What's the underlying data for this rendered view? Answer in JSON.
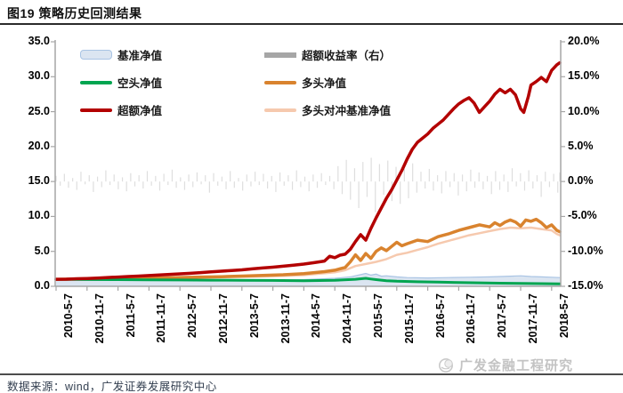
{
  "title": "图19 策略历史回测结果",
  "source_note": "数据来源：wind，广发证券发展研究中心",
  "watermark": "广发金融工程研究",
  "colors": {
    "benchmark_fill": "#dbe5f1",
    "benchmark_border": "#a9c4e4",
    "excess_return_bar": "#dedede",
    "excess_return_legend": "#a6a6a6",
    "short_nav": "#00a550",
    "long_nav": "#d9832e",
    "excess_nav": "#b30000",
    "long_hedge_nav": "#f6c9ae",
    "axis": "#a6a6a6"
  },
  "legend": [
    {
      "label": "基准净值",
      "type": "area"
    },
    {
      "label": "超额收益率（右）",
      "type": "bar"
    },
    {
      "label": "空头净值",
      "type": "line-green"
    },
    {
      "label": "多头净值",
      "type": "line-orange"
    },
    {
      "label": "超额净值",
      "type": "line-red"
    },
    {
      "label": "多头对冲基准净值",
      "type": "line-pink"
    }
  ],
  "chart_data": {
    "type": "line",
    "title": "策略历史回测结果",
    "x_unit": "months since 2010-5-7",
    "x_ticks": [
      "2010-5-7",
      "2010-11-7",
      "2011-5-7",
      "2011-11-7",
      "2012-5-7",
      "2012-11-7",
      "2013-5-7",
      "2013-11-7",
      "2014-5-7",
      "2014-11-7",
      "2015-5-7",
      "2015-11-7",
      "2016-5-7",
      "2016-11-7",
      "2017-5-7",
      "2017-11-7",
      "2018-5-7"
    ],
    "x_tick_months": [
      0,
      6,
      12,
      18,
      24,
      30,
      36,
      42,
      48,
      54,
      60,
      66,
      72,
      78,
      84,
      90,
      96
    ],
    "x_range_months": [
      0,
      98
    ],
    "left_axis": {
      "ylim": [
        0,
        35
      ],
      "tick_values": [
        35,
        30,
        25,
        20,
        15,
        10,
        5,
        0
      ],
      "tick_labels": [
        "35.0",
        "30.0",
        "25.0",
        "20.0",
        "15.0",
        "10.0",
        "5.0",
        "0.0"
      ]
    },
    "right_axis": {
      "ylim": [
        -15,
        20
      ],
      "tick_values": [
        20,
        15,
        10,
        5,
        0,
        -5,
        -10,
        -15
      ],
      "tick_labels": [
        "20.0%",
        "15.0%",
        "10.0%",
        "5.0%",
        "0.0%",
        "-5.0%",
        "-10.0%",
        "-15.0%"
      ]
    },
    "grid": false,
    "legend_position": "top-inside",
    "series": [
      {
        "name": "基准净值",
        "axis": "left",
        "style": "area",
        "points": [
          [
            0,
            1.0
          ],
          [
            6,
            0.95
          ],
          [
            12,
            0.9
          ],
          [
            18,
            0.85
          ],
          [
            24,
            0.92
          ],
          [
            30,
            0.88
          ],
          [
            36,
            0.9
          ],
          [
            42,
            0.85
          ],
          [
            48,
            0.95
          ],
          [
            54,
            1.15
          ],
          [
            57,
            1.35
          ],
          [
            60,
            1.85
          ],
          [
            61,
            1.6
          ],
          [
            62,
            1.75
          ],
          [
            63,
            1.45
          ],
          [
            64,
            1.5
          ],
          [
            66,
            1.35
          ],
          [
            68,
            1.25
          ],
          [
            72,
            1.2
          ],
          [
            76,
            1.25
          ],
          [
            80,
            1.3
          ],
          [
            84,
            1.35
          ],
          [
            88,
            1.45
          ],
          [
            90,
            1.5
          ],
          [
            92,
            1.4
          ],
          [
            94,
            1.35
          ],
          [
            96,
            1.3
          ],
          [
            98,
            1.25
          ]
        ]
      },
      {
        "name": "空头净值",
        "axis": "left",
        "style": "line-green",
        "points": [
          [
            0,
            1.0
          ],
          [
            6,
            0.97
          ],
          [
            12,
            0.96
          ],
          [
            18,
            0.92
          ],
          [
            24,
            0.9
          ],
          [
            30,
            0.88
          ],
          [
            36,
            0.86
          ],
          [
            42,
            0.84
          ],
          [
            48,
            0.8
          ],
          [
            54,
            0.85
          ],
          [
            58,
            1.0
          ],
          [
            60,
            1.15
          ],
          [
            61,
            1.05
          ],
          [
            62,
            0.95
          ],
          [
            64,
            0.8
          ],
          [
            66,
            0.72
          ],
          [
            70,
            0.65
          ],
          [
            74,
            0.6
          ],
          [
            78,
            0.55
          ],
          [
            82,
            0.5
          ],
          [
            86,
            0.45
          ],
          [
            90,
            0.42
          ],
          [
            94,
            0.38
          ],
          [
            98,
            0.35
          ]
        ]
      },
      {
        "name": "多头对冲基准净值",
        "axis": "left",
        "style": "line-pink",
        "points": [
          [
            0,
            1.0
          ],
          [
            6,
            1.04
          ],
          [
            12,
            1.1
          ],
          [
            18,
            1.15
          ],
          [
            24,
            1.2
          ],
          [
            30,
            1.27
          ],
          [
            36,
            1.35
          ],
          [
            42,
            1.45
          ],
          [
            48,
            1.6
          ],
          [
            54,
            2.0
          ],
          [
            56,
            2.3
          ],
          [
            58,
            2.9
          ],
          [
            60,
            3.2
          ],
          [
            62,
            3.5
          ],
          [
            64,
            3.9
          ],
          [
            66,
            4.5
          ],
          [
            68,
            4.8
          ],
          [
            70,
            5.2
          ],
          [
            72,
            5.6
          ],
          [
            74,
            6.1
          ],
          [
            76,
            6.5
          ],
          [
            78,
            6.9
          ],
          [
            80,
            7.3
          ],
          [
            82,
            7.6
          ],
          [
            84,
            7.9
          ],
          [
            86,
            8.2
          ],
          [
            88,
            8.4
          ],
          [
            90,
            8.3
          ],
          [
            92,
            8.4
          ],
          [
            94,
            8.2
          ],
          [
            96,
            8.0
          ],
          [
            97,
            7.5
          ],
          [
            98,
            7.3
          ]
        ]
      },
      {
        "name": "多头净值",
        "axis": "left",
        "style": "line-orange",
        "points": [
          [
            0,
            1.0
          ],
          [
            4,
            1.04
          ],
          [
            8,
            1.08
          ],
          [
            12,
            1.12
          ],
          [
            16,
            1.16
          ],
          [
            20,
            1.2
          ],
          [
            24,
            1.26
          ],
          [
            28,
            1.32
          ],
          [
            32,
            1.38
          ],
          [
            36,
            1.46
          ],
          [
            40,
            1.56
          ],
          [
            44,
            1.66
          ],
          [
            48,
            1.82
          ],
          [
            52,
            2.1
          ],
          [
            54,
            2.3
          ],
          [
            56,
            2.7
          ],
          [
            57,
            3.5
          ],
          [
            58,
            4.5
          ],
          [
            59,
            3.7
          ],
          [
            60,
            4.7
          ],
          [
            61,
            4.0
          ],
          [
            62,
            5.0
          ],
          [
            63,
            5.5
          ],
          [
            64,
            5.1
          ],
          [
            65,
            5.7
          ],
          [
            66,
            6.3
          ],
          [
            67,
            5.8
          ],
          [
            68,
            6.1
          ],
          [
            70,
            6.6
          ],
          [
            72,
            6.4
          ],
          [
            74,
            7.1
          ],
          [
            76,
            7.5
          ],
          [
            78,
            8.0
          ],
          [
            80,
            8.4
          ],
          [
            82,
            8.8
          ],
          [
            84,
            8.5
          ],
          [
            85,
            9.1
          ],
          [
            86,
            8.7
          ],
          [
            87,
            9.2
          ],
          [
            88,
            9.5
          ],
          [
            89,
            9.2
          ],
          [
            90,
            8.6
          ],
          [
            91,
            9.5
          ],
          [
            92,
            9.3
          ],
          [
            93,
            9.6
          ],
          [
            94,
            9.1
          ],
          [
            95,
            8.4
          ],
          [
            96,
            8.8
          ],
          [
            97,
            8.0
          ],
          [
            98,
            7.8
          ]
        ]
      },
      {
        "name": "超额净值",
        "axis": "left",
        "style": "line-red",
        "points": [
          [
            0,
            1.0
          ],
          [
            2,
            1.02
          ],
          [
            4,
            1.08
          ],
          [
            6,
            1.12
          ],
          [
            8,
            1.18
          ],
          [
            10,
            1.26
          ],
          [
            12,
            1.32
          ],
          [
            14,
            1.4
          ],
          [
            16,
            1.46
          ],
          [
            18,
            1.54
          ],
          [
            20,
            1.62
          ],
          [
            22,
            1.7
          ],
          [
            24,
            1.78
          ],
          [
            26,
            1.86
          ],
          [
            28,
            1.96
          ],
          [
            30,
            2.06
          ],
          [
            32,
            2.16
          ],
          [
            34,
            2.26
          ],
          [
            36,
            2.36
          ],
          [
            38,
            2.5
          ],
          [
            40,
            2.62
          ],
          [
            42,
            2.74
          ],
          [
            44,
            2.88
          ],
          [
            46,
            3.02
          ],
          [
            48,
            3.18
          ],
          [
            50,
            3.38
          ],
          [
            52,
            3.62
          ],
          [
            53,
            4.3
          ],
          [
            54,
            4.1
          ],
          [
            55,
            4.45
          ],
          [
            56,
            4.6
          ],
          [
            57,
            5.3
          ],
          [
            58,
            6.4
          ],
          [
            59,
            7.4
          ],
          [
            60,
            6.6
          ],
          [
            61,
            8.3
          ],
          [
            62,
            9.8
          ],
          [
            63,
            11.2
          ],
          [
            64,
            12.6
          ],
          [
            65,
            13.8
          ],
          [
            66,
            15.2
          ],
          [
            67,
            16.6
          ],
          [
            68,
            18.2
          ],
          [
            69,
            19.6
          ],
          [
            70,
            20.6
          ],
          [
            71,
            21.2
          ],
          [
            72,
            21.8
          ],
          [
            73,
            22.6
          ],
          [
            74,
            23.2
          ],
          [
            75,
            23.8
          ],
          [
            76,
            24.6
          ],
          [
            77,
            25.4
          ],
          [
            78,
            26.1
          ],
          [
            79,
            26.6
          ],
          [
            80,
            27.0
          ],
          [
            81,
            26.2
          ],
          [
            82,
            24.9
          ],
          [
            83,
            25.7
          ],
          [
            84,
            26.5
          ],
          [
            85,
            27.5
          ],
          [
            86,
            28.2
          ],
          [
            87,
            27.7
          ],
          [
            88,
            28.2
          ],
          [
            89,
            27.4
          ],
          [
            90,
            25.4
          ],
          [
            90.6,
            24.9
          ],
          [
            91.5,
            27.2
          ],
          [
            92,
            28.8
          ],
          [
            93,
            29.3
          ],
          [
            94,
            29.9
          ],
          [
            95,
            29.3
          ],
          [
            96,
            30.9
          ],
          [
            97,
            31.7
          ],
          [
            98,
            32.0
          ]
        ]
      }
    ],
    "bars": {
      "name": "超额收益率（右）",
      "axis": "right",
      "unit": "%",
      "t_range": [
        0,
        98
      ],
      "values": [
        0.8,
        -0.6,
        1.1,
        -0.9,
        0.5,
        -1.2,
        1.4,
        -0.4,
        0.9,
        -1.5,
        0.7,
        -0.8,
        1.6,
        -0.5,
        1.0,
        -1.1,
        0.6,
        -1.4,
        1.2,
        -0.7,
        0.9,
        -1.0,
        1.5,
        -0.6,
        0.8,
        -1.3,
        1.1,
        -0.5,
        1.7,
        -0.9,
        0.6,
        -1.2,
        1.0,
        -0.8,
        1.3,
        -0.4,
        0.9,
        -1.6,
        1.2,
        -0.6,
        0.7,
        -1.1,
        1.5,
        -0.9,
        0.5,
        -1.3,
        1.0,
        -0.7,
        1.4,
        -0.5,
        1.1,
        -1.0,
        0.8,
        -1.5,
        1.3,
        -0.6,
        0.9,
        -1.2,
        1.6,
        -0.8,
        0.7,
        -1.4,
        1.0,
        -0.9,
        1.2,
        -0.5,
        0.8,
        -1.1,
        2.2,
        -1.8,
        3.1,
        -2.6,
        1.9,
        -3.8,
        2.8,
        -2.2,
        3.4,
        -4.4,
        2.5,
        -1.9,
        3.0,
        -2.8,
        2.1,
        -3.2,
        1.8,
        -2.4,
        2.6,
        -1.6,
        1.4,
        -1.0,
        1.8,
        -1.3,
        0.9,
        -1.7,
        1.5,
        -0.8,
        1.2,
        -2.0,
        1.0,
        -1.4,
        1.7,
        -0.9,
        1.3,
        -1.1,
        0.8,
        -1.8,
        1.5,
        -1.2,
        1.0,
        -1.5,
        1.9,
        -0.7,
        1.2,
        -1.3,
        1.6,
        -1.0,
        0.9,
        -2.2,
        1.4,
        -0.8,
        1.1,
        -1.6,
        1.3
      ]
    }
  }
}
